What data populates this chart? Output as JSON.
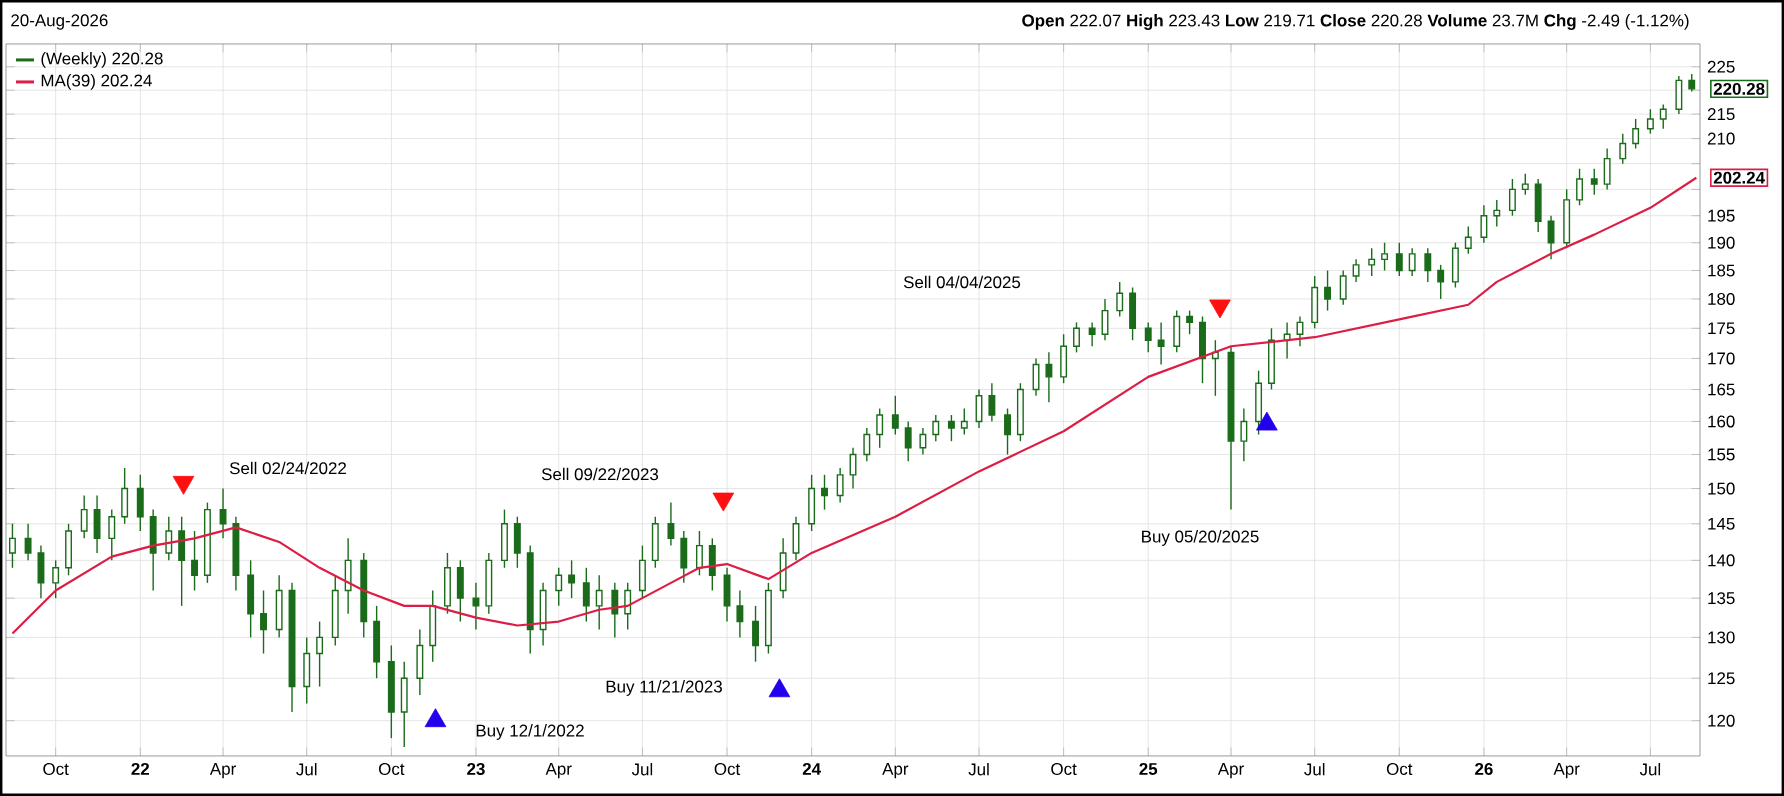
{
  "chart_data": {
    "type": "candlestick",
    "log": "y",
    "grid": true,
    "legend": "top left",
    "xlim": [
      "2021-08-08",
      "2026-08-24"
    ],
    "xticks": [
      {
        "value": "2021-10-01",
        "label": "Oct"
      },
      {
        "value": "2022-01-01",
        "label": "22"
      },
      {
        "value": "2022-04-01",
        "label": "Apr"
      },
      {
        "value": "2022-07-01",
        "label": "Jul"
      },
      {
        "value": "2022-10-01",
        "label": "Oct"
      },
      {
        "value": "2023-01-01",
        "label": "23"
      },
      {
        "value": "2023-04-01",
        "label": "Apr"
      },
      {
        "value": "2023-07-01",
        "label": "Jul"
      },
      {
        "value": "2023-10-01",
        "label": "Oct"
      },
      {
        "value": "2024-01-01",
        "label": "24"
      },
      {
        "value": "2024-04-01",
        "label": "Apr"
      },
      {
        "value": "2024-07-01",
        "label": "Jul"
      },
      {
        "value": "2024-10-01",
        "label": "Oct"
      },
      {
        "value": "2025-01-01",
        "label": "25"
      },
      {
        "value": "2025-04-01",
        "label": "Apr"
      },
      {
        "value": "2025-07-01",
        "label": "Jul"
      },
      {
        "value": "2025-10-01",
        "label": "Oct"
      },
      {
        "value": "2026-01-01",
        "label": "26"
      },
      {
        "value": "2026-04-01",
        "label": "Apr"
      },
      {
        "value": "2026-07-01",
        "label": "Jul"
      }
    ],
    "ylim": [
      116,
      230
    ],
    "yticks": [
      120,
      125,
      130,
      135,
      140,
      145,
      150,
      155,
      160,
      165,
      170,
      175,
      180,
      185,
      190,
      195,
      {
        "value": 200,
        "label": null
      },
      {
        "value": 205,
        "label": null
      },
      210,
      215,
      {
        "value": 220,
        "label": null
      },
      225
    ],
    "annotations": [
      "20-Aug-2026",
      "**Open** 222.07  **High** 223.43  **Low** 219.71  **Close** 220.28  **Volume** 23.7M  **Chg** -2.49 (-1.12%)",
      "Sell 02/24/2022",
      "Buy 12/1/2022",
      "Sell 09/22/2023",
      "Buy 11/21/2023",
      "Sell 04/04/2025",
      "Buy 05/20/2025"
    ],
    "series": [
      {
        "type": "candlestick",
        "name": "(Weekly) 220.28",
        "color": "#1a6b1a",
        "x": [
          "2021-08-15",
          "2021-09-01",
          "2021-09-15",
          "2021-10-01",
          "2021-10-15",
          "2021-11-01",
          "2021-11-15",
          "2021-12-01",
          "2021-12-15",
          "2022-01-01",
          "2022-01-15",
          "2022-02-01",
          "2022-02-15",
          "2022-03-01",
          "2022-03-15",
          "2022-04-01",
          "2022-04-15",
          "2022-05-01",
          "2022-05-15",
          "2022-06-01",
          "2022-06-15",
          "2022-07-01",
          "2022-07-15",
          "2022-08-01",
          "2022-08-15",
          "2022-09-01",
          "2022-09-15",
          "2022-10-01",
          "2022-10-15",
          "2022-11-01",
          "2022-11-15",
          "2022-12-01",
          "2022-12-15",
          "2023-01-01",
          "2023-01-15",
          "2023-02-01",
          "2023-02-15",
          "2023-03-01",
          "2023-03-15",
          "2023-04-01",
          "2023-04-15",
          "2023-05-01",
          "2023-05-15",
          "2023-06-01",
          "2023-06-15",
          "2023-07-01",
          "2023-07-15",
          "2023-08-01",
          "2023-08-15",
          "2023-09-01",
          "2023-09-15",
          "2023-10-01",
          "2023-10-15",
          "2023-11-01",
          "2023-11-15",
          "2023-12-01",
          "2023-12-15",
          "2024-01-01",
          "2024-01-15",
          "2024-02-01",
          "2024-02-15",
          "2024-03-01",
          "2024-03-15",
          "2024-04-01",
          "2024-04-15",
          "2024-05-01",
          "2024-05-15",
          "2024-06-01",
          "2024-06-15",
          "2024-07-01",
          "2024-07-15",
          "2024-08-01",
          "2024-08-15",
          "2024-09-01",
          "2024-09-15",
          "2024-10-01",
          "2024-10-15",
          "2024-11-01",
          "2024-11-15",
          "2024-12-01",
          "2024-12-15",
          "2025-01-01",
          "2025-01-15",
          "2025-02-01",
          "2025-02-15",
          "2025-03-01",
          "2025-03-15",
          "2025-04-01",
          "2025-04-15",
          "2025-05-01",
          "2025-05-15",
          "2025-06-01",
          "2025-06-15",
          "2025-07-01",
          "2025-07-15",
          "2025-08-01",
          "2025-08-15",
          "2025-09-01",
          "2025-09-15",
          "2025-10-01",
          "2025-10-15",
          "2025-11-01",
          "2025-11-15",
          "2025-12-01",
          "2025-12-15",
          "2026-01-01",
          "2026-01-15",
          "2026-02-01",
          "2026-02-15",
          "2026-03-01",
          "2026-03-15",
          "2026-04-01",
          "2026-04-15",
          "2026-05-01",
          "2026-05-15",
          "2026-06-01",
          "2026-06-15",
          "2026-07-01",
          "2026-07-15",
          "2026-08-01",
          "2026-08-15"
        ],
        "ohlc": [
          [
            141,
            145,
            139,
            143
          ],
          [
            143,
            145,
            140,
            141
          ],
          [
            141,
            142,
            135,
            137
          ],
          [
            137,
            140,
            135,
            139
          ],
          [
            139,
            145,
            138,
            144
          ],
          [
            144,
            149,
            143,
            147
          ],
          [
            147,
            149,
            141,
            143
          ],
          [
            143,
            147,
            140,
            146
          ],
          [
            146,
            153,
            145,
            150
          ],
          [
            150,
            152,
            144,
            146
          ],
          [
            146,
            147,
            136,
            141
          ],
          [
            141,
            146,
            140,
            144
          ],
          [
            144,
            146,
            134,
            140
          ],
          [
            140,
            144,
            136,
            138
          ],
          [
            138,
            148,
            137,
            147
          ],
          [
            147,
            150,
            143,
            145
          ],
          [
            145,
            146,
            136,
            138
          ],
          [
            138,
            140,
            130,
            133
          ],
          [
            133,
            136,
            128,
            131
          ],
          [
            131,
            138,
            130,
            136
          ],
          [
            136,
            137,
            121,
            124
          ],
          [
            124,
            130,
            122,
            128
          ],
          [
            128,
            132,
            124,
            130
          ],
          [
            130,
            138,
            129,
            136
          ],
          [
            136,
            143,
            133,
            140
          ],
          [
            140,
            141,
            130,
            132
          ],
          [
            132,
            134,
            125,
            127
          ],
          [
            127,
            129,
            118,
            121
          ],
          [
            121,
            127,
            117,
            125
          ],
          [
            125,
            131,
            123,
            129
          ],
          [
            129,
            136,
            127,
            134
          ],
          [
            134,
            141,
            133,
            139
          ],
          [
            139,
            140,
            132,
            135
          ],
          [
            135,
            137,
            131,
            134
          ],
          [
            134,
            141,
            133,
            140
          ],
          [
            140,
            147,
            139,
            145
          ],
          [
            145,
            146,
            139,
            141
          ],
          [
            141,
            142,
            128,
            131
          ],
          [
            131,
            137,
            129,
            136
          ],
          [
            136,
            139,
            134,
            138
          ],
          [
            138,
            140,
            135,
            137
          ],
          [
            137,
            139,
            132,
            134
          ],
          [
            134,
            138,
            131,
            136
          ],
          [
            136,
            137,
            130,
            133
          ],
          [
            133,
            137,
            131,
            136
          ],
          [
            136,
            142,
            135,
            140
          ],
          [
            140,
            146,
            139,
            145
          ],
          [
            145,
            148,
            142,
            143
          ],
          [
            143,
            144,
            137,
            139
          ],
          [
            139,
            144,
            138,
            142
          ],
          [
            142,
            143,
            136,
            138
          ],
          [
            138,
            139,
            132,
            134
          ],
          [
            134,
            136,
            130,
            132
          ],
          [
            132,
            134,
            127,
            129
          ],
          [
            129,
            137,
            128,
            136
          ],
          [
            136,
            143,
            135,
            141
          ],
          [
            141,
            146,
            140,
            145
          ],
          [
            145,
            152,
            144,
            150
          ],
          [
            150,
            152,
            147,
            149
          ],
          [
            149,
            153,
            148,
            152
          ],
          [
            152,
            156,
            150,
            155
          ],
          [
            155,
            159,
            154,
            158
          ],
          [
            158,
            162,
            156,
            161
          ],
          [
            161,
            164,
            158,
            159
          ],
          [
            159,
            160,
            154,
            156
          ],
          [
            156,
            159,
            155,
            158
          ],
          [
            158,
            161,
            157,
            160
          ],
          [
            160,
            161,
            157,
            159
          ],
          [
            159,
            162,
            158,
            160
          ],
          [
            160,
            165,
            159,
            164
          ],
          [
            164,
            166,
            160,
            161
          ],
          [
            161,
            162,
            155,
            158
          ],
          [
            158,
            166,
            157,
            165
          ],
          [
            165,
            170,
            164,
            169
          ],
          [
            169,
            171,
            163,
            167
          ],
          [
            167,
            174,
            166,
            172
          ],
          [
            172,
            176,
            171,
            175
          ],
          [
            175,
            176,
            172,
            174
          ],
          [
            174,
            180,
            173,
            178
          ],
          [
            178,
            183,
            177,
            181
          ],
          [
            181,
            182,
            173,
            175
          ],
          [
            175,
            176,
            171,
            173
          ],
          [
            173,
            176,
            169,
            172
          ],
          [
            172,
            178,
            171,
            177
          ],
          [
            177,
            178,
            174,
            176
          ],
          [
            176,
            177,
            166,
            170
          ],
          [
            170,
            173,
            164,
            171
          ],
          [
            171,
            172,
            147,
            157
          ],
          [
            157,
            162,
            154,
            160
          ],
          [
            160,
            168,
            158,
            166
          ],
          [
            166,
            175,
            165,
            173
          ],
          [
            173,
            176,
            170,
            174
          ],
          [
            174,
            177,
            172,
            176
          ],
          [
            176,
            184,
            175,
            182
          ],
          [
            182,
            185,
            178,
            180
          ],
          [
            180,
            185,
            179,
            184
          ],
          [
            184,
            187,
            183,
            186
          ],
          [
            186,
            189,
            184,
            187
          ],
          [
            187,
            190,
            185,
            188
          ],
          [
            188,
            190,
            184,
            185
          ],
          [
            185,
            189,
            184,
            188
          ],
          [
            188,
            189,
            183,
            185
          ],
          [
            185,
            186,
            180,
            183
          ],
          [
            183,
            190,
            182,
            189
          ],
          [
            189,
            193,
            188,
            191
          ],
          [
            191,
            197,
            190,
            195
          ],
          [
            195,
            198,
            193,
            196
          ],
          [
            196,
            202,
            195,
            200
          ],
          [
            200,
            203,
            199,
            201
          ],
          [
            201,
            202,
            192,
            194
          ],
          [
            194,
            195,
            187,
            190
          ],
          [
            190,
            200,
            189,
            198
          ],
          [
            198,
            204,
            197,
            202
          ],
          [
            202,
            204,
            199,
            201
          ],
          [
            201,
            208,
            200,
            206
          ],
          [
            206,
            211,
            205,
            209
          ],
          [
            209,
            214,
            208,
            212
          ],
          [
            212,
            216,
            211,
            214
          ],
          [
            214,
            217,
            212,
            216
          ],
          [
            216,
            223,
            215,
            222.07
          ],
          [
            222.07,
            223.43,
            219.71,
            220.28
          ]
        ],
        "value_labels": [
          null,
          null,
          null,
          null,
          null,
          null,
          null,
          null,
          null,
          null,
          null,
          null,
          null,
          null,
          null,
          null,
          null,
          null,
          null,
          null,
          null,
          null,
          null,
          null,
          null,
          null,
          null,
          null,
          null,
          null,
          null,
          null,
          null,
          null,
          null,
          null,
          null,
          null,
          null,
          null,
          null,
          null,
          null,
          null,
          null,
          null,
          null,
          null,
          null,
          null,
          null,
          null,
          null,
          null,
          null,
          null,
          null,
          null,
          null,
          null,
          null,
          null,
          null,
          null,
          null,
          null,
          null,
          null,
          null,
          null,
          null,
          null,
          null,
          null,
          null,
          null,
          null,
          null,
          null,
          null,
          null,
          null,
          null,
          null,
          null,
          null,
          null,
          null,
          null,
          null,
          null,
          null,
          null,
          null,
          null,
          null,
          null,
          null,
          null,
          null,
          null,
          null,
          null,
          null,
          null,
          null,
          null,
          null,
          null,
          null,
          null,
          null,
          null,
          null,
          null,
          null,
          null,
          null,
          null,
          null,
          "220.28"
        ]
      },
      {
        "type": "line",
        "name": "MA(39) 202.24",
        "color": "#dc1e46",
        "line_style": "solid",
        "x": [
          "2021-08-15",
          "2021-10-01",
          "2021-12-01",
          "2022-01-15",
          "2022-03-01",
          "2022-04-15",
          "2022-06-01",
          "2022-07-15",
          "2022-09-01",
          "2022-10-15",
          "2022-11-15",
          "2023-01-01",
          "2023-02-15",
          "2023-04-01",
          "2023-05-15",
          "2023-06-15",
          "2023-08-01",
          "2023-09-01",
          "2023-10-01",
          "2023-11-15",
          "2024-01-01",
          "2024-04-01",
          "2024-07-01",
          "2024-10-01",
          "2025-01-01",
          "2025-04-01",
          "2025-07-01",
          "2025-10-01",
          "2025-12-15",
          "2026-01-15",
          "2026-03-15",
          "2026-05-01",
          "2026-07-01",
          "2026-08-20"
        ],
        "values": [
          130.5,
          136,
          140.5,
          142,
          143,
          144.5,
          142.5,
          139,
          136,
          134,
          134,
          132.5,
          131.5,
          132,
          133.5,
          134,
          137,
          139,
          139.5,
          137.5,
          141,
          146,
          152.5,
          158.5,
          167,
          172,
          173.5,
          176.5,
          179,
          183,
          188,
          191.5,
          196.5,
          202.24
        ],
        "value_labels": [
          null,
          null,
          null,
          null,
          null,
          null,
          null,
          null,
          null,
          null,
          null,
          null,
          null,
          null,
          null,
          null,
          null,
          null,
          null,
          null,
          null,
          null,
          null,
          null,
          null,
          null,
          null,
          null,
          null,
          null,
          null,
          null,
          null,
          "202.24"
        ]
      },
      {
        "type": "scatter",
        "color": "#ff1010",
        "marker": "triangle",
        "x": [
          "2022-02-17",
          "2023-09-27",
          "2025-03-20"
        ],
        "values": [
          150.9,
          148.5,
          178.8
        ]
      },
      {
        "type": "scatter",
        "color": "#2200ee",
        "marker": "triangle",
        "x": [
          "2022-11-18",
          "2023-11-27",
          "2025-05-10"
        ],
        "values": [
          120,
          123.5,
          159.6
        ]
      }
    ]
  }
}
